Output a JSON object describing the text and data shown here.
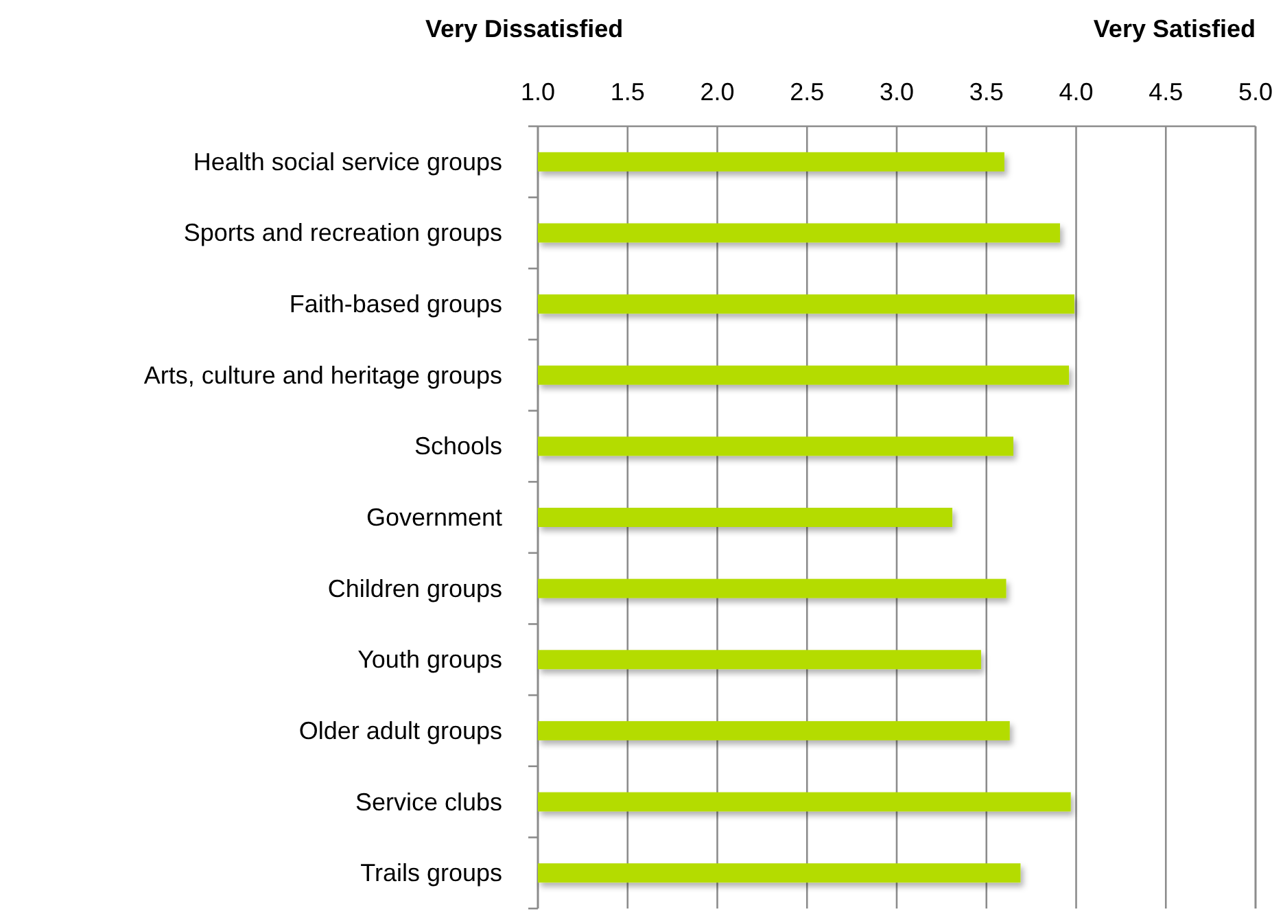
{
  "chart_data": {
    "type": "bar",
    "orientation": "horizontal",
    "categories": [
      "Health social service groups",
      "Sports and recreation groups",
      "Faith-based groups",
      "Arts, culture and heritage groups",
      "Schools",
      "Government",
      "Children groups",
      "Youth groups",
      "Older adult groups",
      "Service clubs",
      "Trails groups"
    ],
    "values": [
      3.6,
      3.91,
      3.99,
      3.96,
      3.65,
      3.31,
      3.61,
      3.47,
      3.63,
      3.97,
      3.69
    ],
    "color": "#b4dc00",
    "xlim": [
      1,
      5
    ],
    "xticks": [
      {
        "value": 1,
        "label": "1.0"
      },
      {
        "value": 1.5,
        "label": "1.5"
      },
      {
        "value": 2,
        "label": "2.0"
      },
      {
        "value": 2.5,
        "label": "2.5"
      },
      {
        "value": 3,
        "label": "3.0"
      },
      {
        "value": 3.5,
        "label": "3.5"
      },
      {
        "value": 4,
        "label": "4.0"
      },
      {
        "value": 4.5,
        "label": "4.5"
      },
      {
        "value": 5,
        "label": "5.0"
      }
    ],
    "grid": "x",
    "annotations": [
      "Very Dissatisfied",
      "Very Satisfied"
    ]
  }
}
